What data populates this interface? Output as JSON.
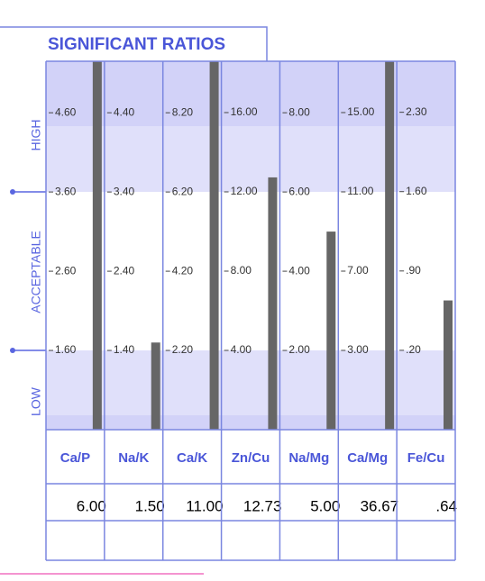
{
  "chart_data": {
    "type": "bar",
    "title": "SIGNIFICANT RATIOS",
    "band_labels": [
      "HIGH",
      "ACCEPTABLE",
      "LOW"
    ],
    "categories": [
      "Ca/P",
      "Na/K",
      "Ca/K",
      "Zn/Cu",
      "Na/Mg",
      "Ca/Mg",
      "Fe/Cu"
    ],
    "values": [
      6.0,
      1.5,
      11.0,
      12.73,
      5.0,
      36.67,
      0.64
    ],
    "value_labels": [
      "6.00",
      "1.50",
      "11.00",
      "12.73",
      "5.00",
      "36.67",
      ".64"
    ],
    "color": "#666666",
    "axes": [
      {
        "ylim": [
          0.6,
          5.25
        ],
        "yticks": [
          {
            "value": 1.6,
            "label": "1.60"
          },
          {
            "value": 2.6,
            "label": "2.60"
          },
          {
            "value": 3.6,
            "label": "3.60"
          },
          {
            "value": 4.6,
            "label": "4.60"
          }
        ]
      },
      {
        "ylim": [
          0.4,
          5.05
        ],
        "yticks": [
          {
            "value": 1.4,
            "label": "1.40"
          },
          {
            "value": 2.4,
            "label": "2.40"
          },
          {
            "value": 3.4,
            "label": "3.40"
          },
          {
            "value": 4.4,
            "label": "4.40"
          }
        ]
      },
      {
        "ylim": [
          0.2,
          9.5
        ],
        "yticks": [
          {
            "value": 2.2,
            "label": "2.20"
          },
          {
            "value": 4.2,
            "label": "4.20"
          },
          {
            "value": 6.2,
            "label": "6.20"
          },
          {
            "value": 8.2,
            "label": "8.20"
          }
        ]
      },
      {
        "ylim": [
          0,
          18.59
        ],
        "yticks": [
          {
            "value": 4,
            "label": "4.00"
          },
          {
            "value": 8,
            "label": "8.00"
          },
          {
            "value": 12,
            "label": "12.00"
          },
          {
            "value": 16,
            "label": "16.00"
          }
        ]
      },
      {
        "ylim": [
          0,
          9.3
        ],
        "yticks": [
          {
            "value": 2,
            "label": "2.00"
          },
          {
            "value": 4,
            "label": "4.00"
          },
          {
            "value": 6,
            "label": "6.00"
          },
          {
            "value": 8,
            "label": "8.00"
          }
        ]
      },
      {
        "ylim": [
          -1,
          17.59
        ],
        "yticks": [
          {
            "value": 3,
            "label": "3.00"
          },
          {
            "value": 7,
            "label": "7.00"
          },
          {
            "value": 11,
            "label": "11.00"
          },
          {
            "value": 15,
            "label": "15.00"
          }
        ]
      },
      {
        "ylim": [
          -0.5,
          2.75
        ],
        "yticks": [
          {
            "value": 0.2,
            "label": ".20"
          },
          {
            "value": 0.9,
            "label": ".90"
          },
          {
            "value": 1.6,
            "label": "1.60"
          },
          {
            "value": 2.3,
            "label": "2.30"
          }
        ]
      }
    ]
  }
}
